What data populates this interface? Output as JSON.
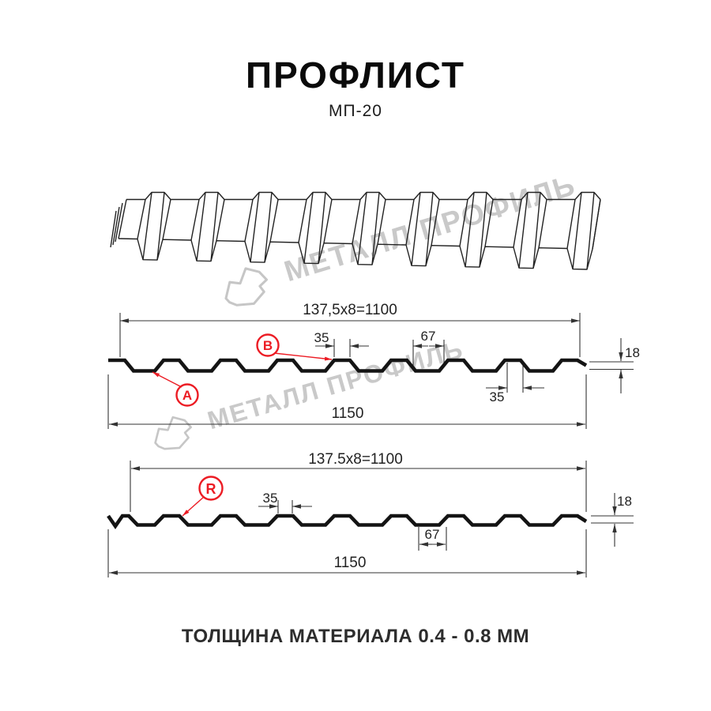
{
  "page": {
    "title": "ПРОФЛИСТ",
    "subtitle": "МП-20",
    "footer_note": "ТОЛЩИНА МАТЕРИАЛА 0.4 - 0.8 ММ"
  },
  "watermark": {
    "brand_text": "МЕТАЛЛ ПРОФИЛЬ"
  },
  "colors": {
    "accent_red": "#ec1c24",
    "drawing_line": "#141414",
    "dimension_line": "#333333",
    "watermark_gray": "#c9c9c9"
  },
  "drawing_top": {
    "module_dimension": "137,5x8=1100",
    "rib_top_width": "35",
    "valley_width": "67",
    "rib_top_width_lower": "35",
    "profile_height": "18",
    "overall_width": "1150",
    "label_a": "A",
    "label_b": "B"
  },
  "drawing_bottom": {
    "module_dimension": "137.5x8=1100",
    "rib_top_width": "35",
    "valley_width": "67",
    "profile_height": "18",
    "overall_width": "1150",
    "label_r": "R"
  }
}
